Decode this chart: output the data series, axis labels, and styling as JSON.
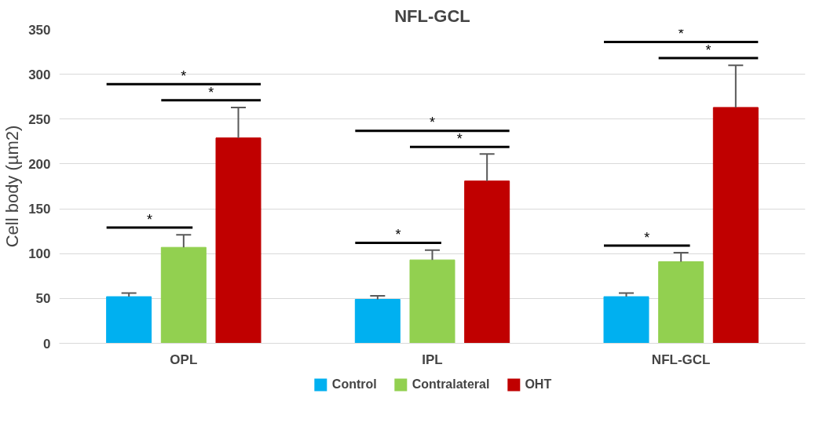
{
  "chart_data": {
    "type": "bar",
    "title": "NFL-GCL",
    "ylabel": "Cell body (µm2)",
    "categories": [
      "OPL",
      "IPL",
      "NFL-GCL"
    ],
    "series": [
      {
        "name": "Control",
        "color": "#00b0f0",
        "values": [
          52,
          49,
          52
        ],
        "errors": [
          [
            52,
            56
          ],
          [
            49,
            53
          ],
          [
            52,
            56
          ]
        ]
      },
      {
        "name": "Contralateral",
        "color": "#92d050",
        "values": [
          107,
          93,
          91
        ],
        "errors": [
          [
            107,
            121
          ],
          [
            93,
            104
          ],
          [
            91,
            101
          ]
        ]
      },
      {
        "name": "OHT",
        "color": "#c00000",
        "values": [
          229,
          181,
          263
        ],
        "errors": [
          [
            229,
            263
          ],
          [
            181,
            211
          ],
          [
            263,
            310
          ]
        ]
      }
    ],
    "ylim": [
      0,
      350
    ],
    "yticks": [
      0,
      50,
      100,
      150,
      200,
      250,
      300,
      350
    ],
    "grid": "y",
    "legend": "bottom",
    "annotations": [
      "*",
      "*",
      "*",
      "*",
      "*",
      "*",
      "*",
      "*",
      "*"
    ]
  }
}
